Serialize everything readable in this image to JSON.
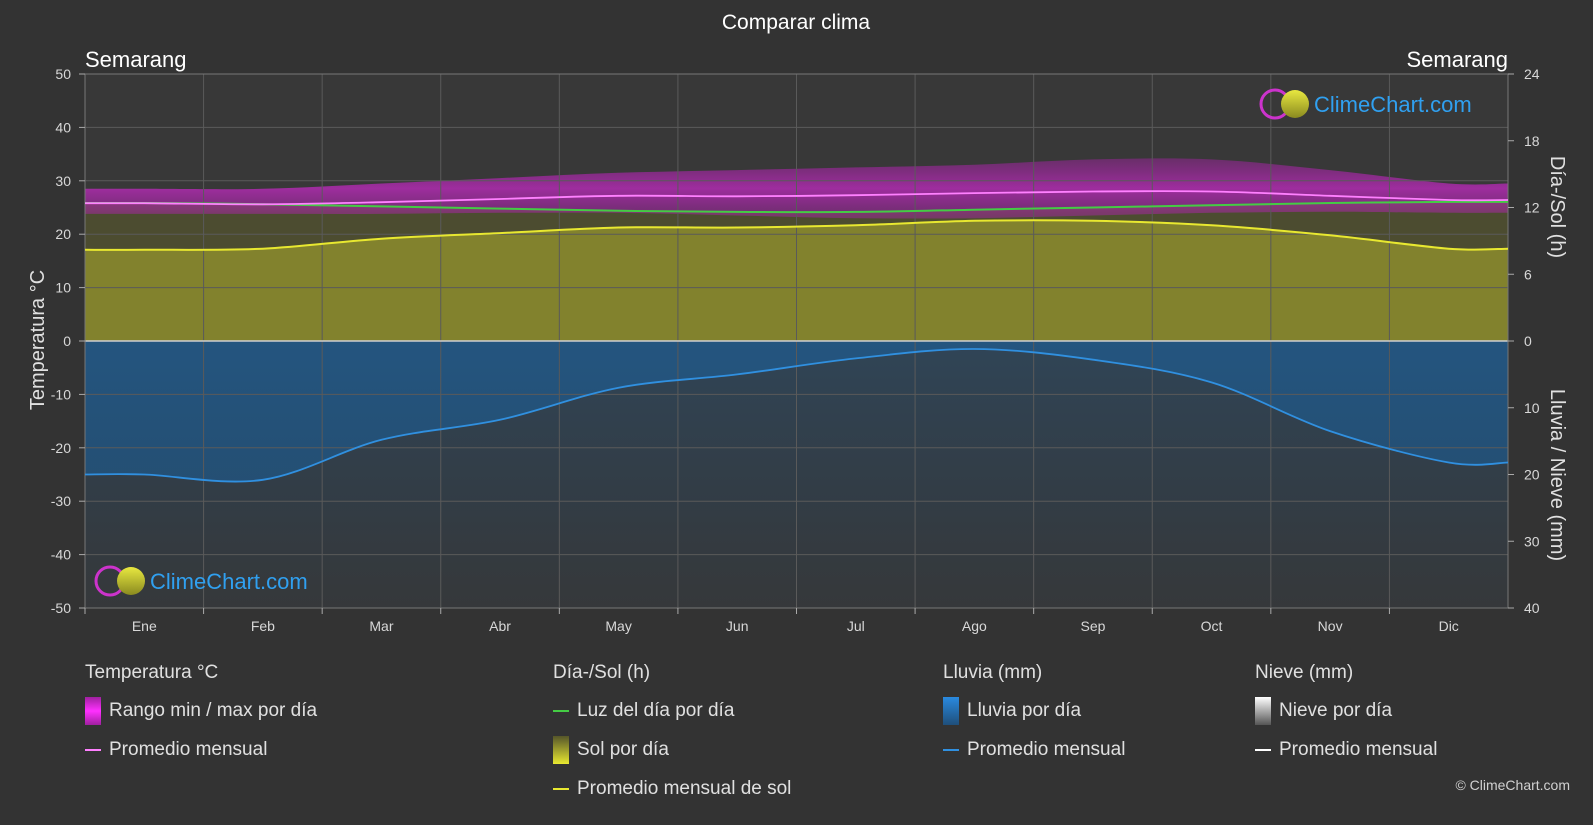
{
  "title": "Comparar clima",
  "copyright": "© ClimeChart.com",
  "watermark": "ClimeChart.com",
  "chart_data": {
    "type": "line",
    "title": "Comparar clima",
    "location_left": "Semarang",
    "location_right": "Semarang",
    "categories": [
      "Ene",
      "Feb",
      "Mar",
      "Abr",
      "May",
      "Jun",
      "Jul",
      "Ago",
      "Sep",
      "Oct",
      "Nov",
      "Dic"
    ],
    "left_axis": {
      "label": "Temperatura °C",
      "min": -50,
      "max": 50,
      "ticks": [
        50,
        40,
        30,
        20,
        10,
        0,
        -10,
        -20,
        -30,
        -40,
        -50
      ]
    },
    "right_axis_top": {
      "label": "Día-/Sol (h)",
      "min": 0,
      "max": 24,
      "ticks": [
        24,
        18,
        12,
        6,
        0
      ]
    },
    "right_axis_bottom": {
      "label": "Lluvia / Nieve (mm)",
      "min": 0,
      "max": 40,
      "ticks": [
        0,
        10,
        20,
        30,
        40
      ]
    },
    "series": [
      {
        "name": "Promedio mensual",
        "group": "temperature",
        "values": [
          25.8,
          25.6,
          26.0,
          26.6,
          27.2,
          27.1,
          27.3,
          27.7,
          28.0,
          28.0,
          27.2,
          26.4
        ],
        "color": "#ff80ff"
      },
      {
        "name": "Temp max diaria",
        "group": "temperature",
        "values": [
          28.5,
          28.5,
          29.5,
          30.5,
          31.5,
          32.0,
          32.5,
          33.0,
          34.0,
          34.0,
          32.0,
          29.5
        ],
        "color": "#d020d0"
      },
      {
        "name": "Temp min diaria",
        "group": "temperature",
        "values": [
          23.8,
          23.8,
          23.8,
          24.0,
          24.0,
          23.5,
          23.0,
          23.0,
          23.5,
          24.0,
          24.2,
          24.0
        ],
        "color": "#d020d0"
      },
      {
        "name": "Luz del día por día",
        "group": "daylight",
        "values": [
          12.4,
          12.3,
          12.1,
          11.9,
          11.7,
          11.6,
          11.6,
          11.8,
          12.0,
          12.2,
          12.4,
          12.5
        ],
        "color": "#44cc44"
      },
      {
        "name": "Promedio mensual de sol",
        "group": "daylight",
        "values": [
          8.2,
          8.3,
          9.2,
          9.7,
          10.2,
          10.2,
          10.4,
          10.8,
          10.8,
          10.4,
          9.5,
          8.3
        ],
        "color": "#e8e830"
      },
      {
        "name": "Promedio mensual",
        "group": "rain",
        "values": [
          20.0,
          20.8,
          14.8,
          11.8,
          7.0,
          5.0,
          2.6,
          1.2,
          2.8,
          6.2,
          13.5,
          18.2
        ],
        "color": "#3090e0"
      }
    ],
    "grid": true
  },
  "legend": {
    "groups": [
      {
        "heading": "Temperatura °C",
        "items": [
          {
            "label": "Rango min / max por día",
            "kind": "box",
            "color": "#e020e0"
          },
          {
            "label": "Promedio mensual",
            "kind": "line",
            "color": "#ff80ff"
          }
        ]
      },
      {
        "heading": "Día-/Sol (h)",
        "items": [
          {
            "label": "Luz del día por día",
            "kind": "line",
            "color": "#44cc44"
          },
          {
            "label": "Sol por día",
            "kind": "box",
            "color": "#d8d830"
          },
          {
            "label": "Promedio mensual de sol",
            "kind": "line",
            "color": "#e8e830"
          }
        ]
      },
      {
        "heading": "Lluvia (mm)",
        "items": [
          {
            "label": "Lluvia por día",
            "kind": "box",
            "color": "#2a7fd0"
          },
          {
            "label": "Promedio mensual",
            "kind": "line",
            "color": "#3090e0"
          }
        ]
      },
      {
        "heading": "Nieve (mm)",
        "items": [
          {
            "label": "Nieve por día",
            "kind": "box",
            "color": "#dddddd"
          },
          {
            "label": "Promedio mensual",
            "kind": "line",
            "color": "#ffffff"
          }
        ]
      }
    ]
  }
}
